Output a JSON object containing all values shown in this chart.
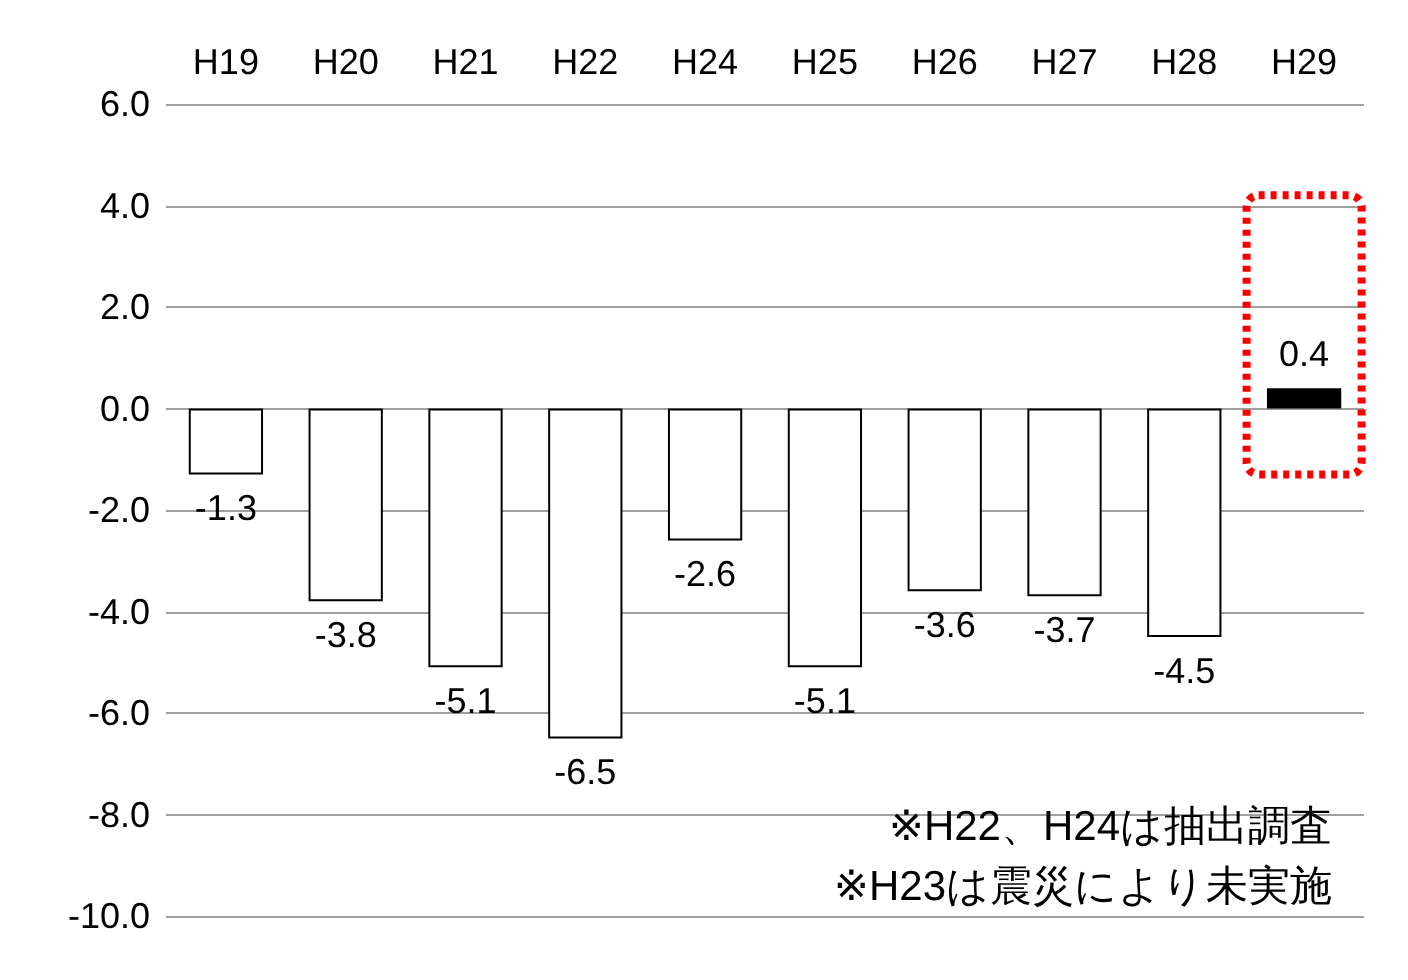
{
  "chart_data": {
    "type": "bar",
    "categories": [
      "H19",
      "H20",
      "H21",
      "H22",
      "H24",
      "H25",
      "H26",
      "H27",
      "H28",
      "H29"
    ],
    "values": [
      -1.3,
      -3.8,
      -5.1,
      -6.5,
      -2.6,
      -5.1,
      -3.6,
      -3.7,
      -4.5,
      0.4
    ],
    "colors": [
      "#ffffff",
      "#ffffff",
      "#ffffff",
      "#ffffff",
      "#ffffff",
      "#ffffff",
      "#ffffff",
      "#ffffff",
      "#ffffff",
      "#000000"
    ],
    "ylim": [
      -10,
      6
    ],
    "yticks": [
      {
        "value": -10,
        "label": "-10.0"
      },
      {
        "value": -8,
        "label": "-8.0"
      },
      {
        "value": -6,
        "label": "-6.0"
      },
      {
        "value": -4,
        "label": "-4.0"
      },
      {
        "value": -2,
        "label": "-2.0"
      },
      {
        "value": 0,
        "label": "0.0"
      },
      {
        "value": 2,
        "label": "2.0"
      },
      {
        "value": 4,
        "label": "4.0"
      },
      {
        "value": 6,
        "label": "6.0"
      }
    ],
    "grid": "y",
    "data_labels": true,
    "annotations": [
      "※H22、H24は抽出調査",
      "※H23は震災により未実施"
    ]
  }
}
